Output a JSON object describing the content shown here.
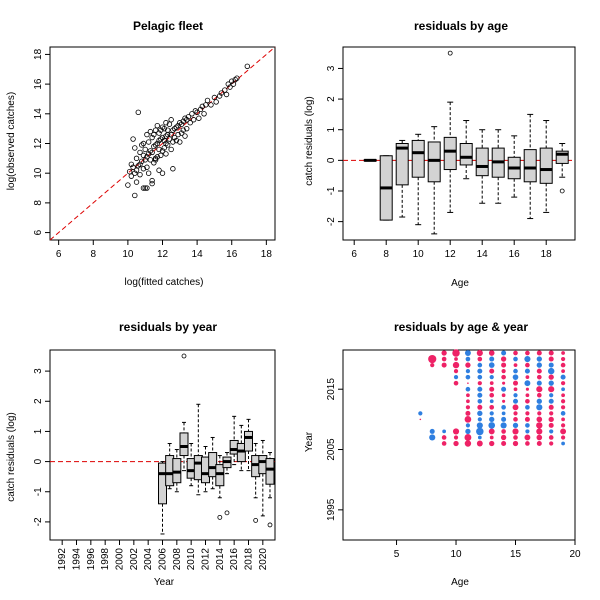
{
  "colors": {
    "ref_line": "#dd0000",
    "box_fill": "#d3d3d3",
    "positive": "#ee2266",
    "negative": "#2f7fe0"
  },
  "chart_data": [
    {
      "id": "scatter",
      "type": "scatter",
      "title": "Pelagic fleet",
      "xlabel": "log(fitted catches)",
      "ylabel": "log(observed catches)",
      "xlim": [
        5.5,
        18.5
      ],
      "ylim": [
        5.5,
        18.5
      ],
      "xticks": [
        6,
        8,
        10,
        12,
        14,
        16,
        18
      ],
      "yticks": [
        6,
        8,
        10,
        12,
        14,
        16,
        18
      ],
      "reference_line": "y = x (dashed)",
      "x": [
        10.0,
        10.1,
        10.2,
        10.3,
        10.3,
        10.4,
        10.4,
        10.5,
        10.5,
        10.5,
        10.6,
        10.6,
        10.7,
        10.7,
        10.7,
        10.8,
        10.8,
        10.9,
        10.9,
        10.9,
        11.0,
        11.0,
        11.0,
        11.1,
        11.1,
        11.1,
        11.2,
        11.2,
        11.2,
        11.3,
        11.3,
        11.3,
        11.4,
        11.4,
        11.4,
        11.5,
        11.5,
        11.5,
        11.6,
        11.6,
        11.6,
        11.7,
        11.7,
        11.7,
        11.8,
        11.8,
        11.8,
        11.9,
        11.9,
        11.9,
        12.0,
        12.0,
        12.0,
        12.1,
        12.1,
        12.1,
        12.2,
        12.2,
        12.2,
        12.3,
        12.3,
        12.3,
        12.4,
        12.4,
        12.5,
        12.5,
        12.5,
        12.6,
        12.6,
        12.7,
        12.7,
        12.8,
        12.8,
        12.9,
        12.9,
        13.0,
        13.0,
        13.1,
        13.1,
        13.2,
        13.2,
        13.3,
        13.3,
        13.4,
        13.4,
        13.5,
        13.6,
        13.7,
        13.8,
        13.9,
        14.0,
        14.1,
        14.2,
        14.3,
        14.4,
        14.5,
        14.6,
        14.8,
        15.0,
        15.1,
        15.3,
        15.4,
        15.6,
        15.7,
        15.8,
        15.9,
        16.0,
        16.1,
        16.2,
        16.3,
        16.9,
        10.4,
        10.9,
        11.1,
        11.4,
        11.6,
        12.0,
        12.6,
        12.2,
        10.2,
        11.8
      ],
      "y": [
        9.2,
        10.1,
        9.8,
        10.4,
        12.3,
        10.0,
        11.7,
        10.2,
        9.4,
        11.0,
        10.5,
        14.1,
        10.6,
        11.4,
        9.9,
        10.8,
        11.9,
        10.3,
        11.2,
        12.0,
        10.9,
        9.0,
        11.6,
        11.1,
        12.6,
        10.4,
        11.3,
        10.0,
        12.1,
        11.5,
        12.8,
        10.9,
        11.4,
        12.4,
        9.3,
        11.8,
        12.6,
        10.7,
        11.9,
        12.9,
        10.9,
        12.0,
        13.2,
        11.1,
        12.2,
        12.7,
        11.6,
        12.3,
        12.9,
        11.2,
        12.4,
        13.1,
        11.5,
        12.2,
        13.0,
        11.7,
        12.5,
        12.0,
        13.4,
        12.6,
        11.9,
        12.9,
        12.3,
        13.3,
        12.6,
        11.6,
        13.6,
        12.9,
        12.1,
        13.0,
        12.4,
        13.1,
        12.2,
        13.2,
        12.6,
        13.4,
        12.1,
        13.3,
        12.7,
        13.5,
        12.9,
        13.7,
        12.5,
        13.6,
        13.0,
        13.8,
        13.4,
        14.0,
        13.6,
        14.2,
        14.1,
        13.7,
        14.3,
        14.5,
        14.0,
        14.6,
        14.9,
        14.6,
        15.1,
        14.8,
        15.2,
        15.4,
        15.6,
        15.3,
        16.0,
        15.8,
        16.2,
        16.0,
        16.3,
        16.4,
        17.2,
        8.5,
        9.0,
        9.0,
        9.5,
        11.0,
        10.0,
        10.3,
        11.3,
        10.6,
        10.2
      ]
    },
    {
      "id": "age_box",
      "type": "box",
      "title": "residuals by age",
      "xlabel": "Age",
      "ylabel": "catch residuals (log)",
      "xlim": [
        5.3,
        19.8
      ],
      "ylim": [
        -2.6,
        3.7
      ],
      "xticks": [
        6,
        8,
        10,
        12,
        14,
        16,
        18
      ],
      "yticks": [
        -2,
        -1,
        0,
        1,
        2,
        3
      ],
      "reference_line": "y = 0 (dashed)",
      "boxes": [
        {
          "x": 7,
          "q1": -0.02,
          "med": 0.0,
          "q3": 0.02,
          "lw": -0.02,
          "uw": 0.02,
          "out": []
        },
        {
          "x": 8,
          "q1": -1.95,
          "med": -0.9,
          "q3": 0.15,
          "lw": -1.95,
          "uw": 0.15,
          "out": []
        },
        {
          "x": 9,
          "q1": -0.8,
          "med": 0.4,
          "q3": 0.55,
          "lw": -1.85,
          "uw": 0.65,
          "out": []
        },
        {
          "x": 10,
          "q1": -0.55,
          "med": 0.25,
          "q3": 0.65,
          "lw": -2.1,
          "uw": 0.85,
          "out": []
        },
        {
          "x": 11,
          "q1": -0.7,
          "med": 0.0,
          "q3": 0.6,
          "lw": -2.4,
          "uw": 1.1,
          "out": []
        },
        {
          "x": 12,
          "q1": -0.3,
          "med": 0.3,
          "q3": 0.75,
          "lw": -1.7,
          "uw": 1.9,
          "out": [
            3.5
          ]
        },
        {
          "x": 13,
          "q1": -0.15,
          "med": 0.1,
          "q3": 0.55,
          "lw": -0.6,
          "uw": 1.3,
          "out": []
        },
        {
          "x": 14,
          "q1": -0.5,
          "med": -0.2,
          "q3": 0.4,
          "lw": -1.4,
          "uw": 1.0,
          "out": []
        },
        {
          "x": 15,
          "q1": -0.55,
          "med": -0.05,
          "q3": 0.4,
          "lw": -1.4,
          "uw": 1.0,
          "out": []
        },
        {
          "x": 16,
          "q1": -0.6,
          "med": -0.25,
          "q3": 0.1,
          "lw": -1.2,
          "uw": 0.8,
          "out": []
        },
        {
          "x": 17,
          "q1": -0.7,
          "med": -0.25,
          "q3": 0.35,
          "lw": -1.9,
          "uw": 1.5,
          "out": []
        },
        {
          "x": 18,
          "q1": -0.75,
          "med": -0.3,
          "q3": 0.4,
          "lw": -1.7,
          "uw": 1.3,
          "out": []
        },
        {
          "x": 19,
          "q1": -0.1,
          "med": 0.2,
          "q3": 0.3,
          "lw": -0.55,
          "uw": 0.55,
          "out": [
            -1.0
          ]
        }
      ]
    },
    {
      "id": "year_box",
      "type": "box",
      "title": "residuals by year",
      "xlabel": "Year",
      "ylabel": "catch residuals (log)",
      "xlim": [
        1990.3,
        2021.7
      ],
      "ylim": [
        -2.6,
        3.7
      ],
      "xticks": [
        1992,
        1994,
        1996,
        1998,
        2000,
        2002,
        2004,
        2006,
        2008,
        2010,
        2012,
        2014,
        2016,
        2018,
        2020
      ],
      "yticks": [
        -2,
        -1,
        0,
        1,
        2,
        3
      ],
      "reference_line": "y = 0 (dashed)",
      "boxes": [
        {
          "x": 2006,
          "q1": -1.4,
          "med": -0.4,
          "q3": -0.05,
          "lw": -2.4,
          "uw": 0.0,
          "out": []
        },
        {
          "x": 2007,
          "q1": -0.8,
          "med": -0.4,
          "q3": 0.2,
          "lw": -0.9,
          "uw": 0.6,
          "out": []
        },
        {
          "x": 2008,
          "q1": -0.7,
          "med": -0.35,
          "q3": 0.1,
          "lw": -1.0,
          "uw": 0.4,
          "out": []
        },
        {
          "x": 2009,
          "q1": 0.2,
          "med": 0.5,
          "q3": 0.95,
          "lw": -0.3,
          "uw": 1.3,
          "out": [
            3.5
          ]
        },
        {
          "x": 2010,
          "q1": -0.55,
          "med": -0.3,
          "q3": 0.1,
          "lw": -0.8,
          "uw": 0.6,
          "out": []
        },
        {
          "x": 2011,
          "q1": -0.6,
          "med": -0.05,
          "q3": 0.2,
          "lw": -1.1,
          "uw": 1.9,
          "out": []
        },
        {
          "x": 2012,
          "q1": -0.7,
          "med": -0.4,
          "q3": 0.15,
          "lw": -1.0,
          "uw": 0.5,
          "out": []
        },
        {
          "x": 2013,
          "q1": -0.5,
          "med": -0.2,
          "q3": 0.3,
          "lw": -0.9,
          "uw": 0.8,
          "out": []
        },
        {
          "x": 2014,
          "q1": -0.8,
          "med": -0.4,
          "q3": -0.1,
          "lw": -1.2,
          "uw": 0.2,
          "out": [
            -1.85
          ]
        },
        {
          "x": 2015,
          "q1": -0.2,
          "med": 0.0,
          "q3": 0.15,
          "lw": -0.4,
          "uw": 0.3,
          "out": [
            -1.7
          ]
        },
        {
          "x": 2016,
          "q1": 0.25,
          "med": 0.4,
          "q3": 0.7,
          "lw": -0.1,
          "uw": 1.5,
          "out": []
        },
        {
          "x": 2017,
          "q1": 0.0,
          "med": 0.35,
          "q3": 0.6,
          "lw": -0.3,
          "uw": 1.2,
          "out": []
        },
        {
          "x": 2018,
          "q1": 0.35,
          "med": 0.8,
          "q3": 1.0,
          "lw": -0.3,
          "uw": 1.4,
          "out": []
        },
        {
          "x": 2019,
          "q1": -0.5,
          "med": -0.1,
          "q3": 0.2,
          "lw": -1.2,
          "uw": 0.6,
          "out": [
            -1.95
          ]
        },
        {
          "x": 2020,
          "q1": -0.4,
          "med": 0.0,
          "q3": 0.2,
          "lw": -1.8,
          "uw": 0.7,
          "out": []
        },
        {
          "x": 2021,
          "q1": -0.75,
          "med": -0.25,
          "q3": 0.1,
          "lw": -1.2,
          "uw": 0.3,
          "out": [
            -2.1
          ]
        }
      ]
    },
    {
      "id": "bubble",
      "type": "scatter",
      "title": "residuals by age & year",
      "xlabel": "Age",
      "ylabel": "Year",
      "xlim": [
        0.5,
        20.0
      ],
      "ylim": [
        1990.0,
        2021.5
      ],
      "xticks": [
        5,
        10,
        15,
        20
      ],
      "yticks": [
        1995,
        2005,
        2015
      ],
      "ages": [
        7,
        8,
        9,
        10,
        11,
        12,
        13,
        14,
        15,
        16,
        17,
        18,
        19
      ],
      "years": [
        2006,
        2007,
        2008,
        2009,
        2010,
        2011,
        2012,
        2013,
        2014,
        2015,
        2016,
        2017,
        2018,
        2019,
        2020,
        2021
      ],
      "residuals": [
        [
          null,
          null,
          null,
          null,
          0.0,
          -0.3,
          null,
          null,
          null,
          null,
          null,
          null,
          null,
          null,
          null,
          null
        ],
        [
          null,
          -0.9,
          -0.5,
          null,
          null,
          null,
          null,
          null,
          null,
          null,
          null,
          null,
          null,
          0.3,
          1.9,
          null
        ],
        [
          0.4,
          0.4,
          -0.2,
          null,
          null,
          null,
          null,
          null,
          null,
          null,
          null,
          null,
          null,
          0.5,
          0.4,
          0.6
        ],
        [
          0.6,
          0.3,
          0.9,
          null,
          null,
          null,
          null,
          null,
          null,
          null,
          0.4,
          -0.3,
          0.3,
          1.0,
          0.2,
          1.5
        ],
        [
          1.0,
          1.2,
          -0.6,
          -0.3,
          1.1,
          0.5,
          0.3,
          0.2,
          0.2,
          -0.4,
          0.0,
          -0.4,
          -0.3,
          0.6,
          -0.4,
          -0.8
        ],
        [
          0.8,
          -0.2,
          -1.5,
          -0.9,
          -0.3,
          -0.6,
          0.5,
          -0.4,
          -0.5,
          -0.5,
          0.3,
          -0.4,
          -0.5,
          -0.4,
          0.4,
          0.9
        ],
        [
          0.6,
          0.2,
          0.8,
          -1.1,
          -0.6,
          -0.3,
          0.4,
          -0.2,
          0.4,
          0.5,
          0.2,
          -0.3,
          0.5,
          -0.7,
          -0.5,
          0.7
        ],
        [
          0.5,
          0.6,
          0.4,
          -0.9,
          -0.5,
          -0.2,
          -0.4,
          0.1,
          0.2,
          -0.5,
          0.1,
          0.4,
          0.3,
          0.5,
          0.6,
          -0.5
        ],
        [
          0.6,
          0.4,
          0.9,
          -0.6,
          0.4,
          0.3,
          0.8,
          -0.5,
          -0.3,
          0.2,
          0.5,
          -0.7,
          -0.4,
          0.2,
          -0.4,
          0.4
        ],
        [
          0.4,
          0.8,
          -0.3,
          -0.4,
          0.5,
          0.3,
          -0.4,
          0.4,
          0.2,
          0.1,
          -0.8,
          0.2,
          -0.5,
          0.4,
          -0.9,
          0.4
        ],
        [
          0.5,
          0.7,
          0.9,
          1.0,
          0.7,
          0.3,
          -0.9,
          -0.6,
          0.4,
          0.9,
          -0.5,
          0.4,
          0.5,
          -0.6,
          -0.6,
          0.5
        ],
        [
          0.3,
          0.4,
          -0.3,
          0.5,
          0.6,
          0.3,
          0.5,
          -0.5,
          -0.3,
          0.9,
          -0.6,
          0.6,
          -1.0,
          -0.5,
          0.5,
          0.5
        ],
        [
          -0.2,
          0.3,
          0.8,
          0.3,
          0.2,
          -0.4,
          0.3,
          0.3,
          0.2,
          -0.2,
          0.3,
          -0.5,
          0.2,
          0.4,
          0.3,
          0.2
        ]
      ]
    }
  ]
}
